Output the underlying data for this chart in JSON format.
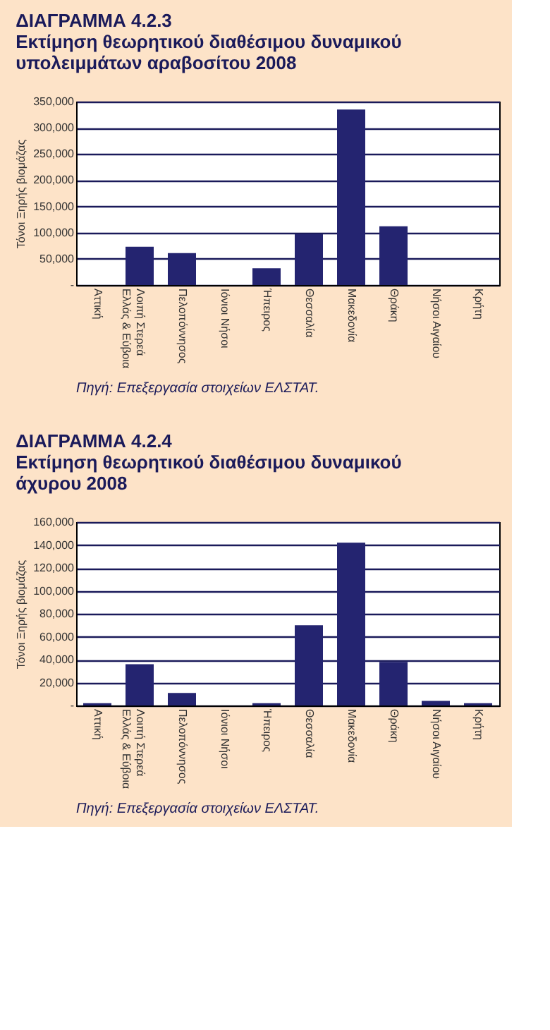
{
  "chart_data": [
    {
      "type": "bar",
      "title": "ΔΙΑΓΡΑΜΜΑ 4.2.3\nΕκτίμηση θεωρητικού διαθέσιμου δυναμικού\nυπολειμμάτων αραβοσίτου 2008",
      "ylabel": "Τόνοι Ξηρής βιομάζας",
      "categories": [
        "Αττική",
        "Λοιπή Στερεά\nΕλλάς & Εύβοια",
        "Πελοπόννησος",
        "Ιόνιοι Νήσοι",
        "Ήπειρος",
        "Θεσσαλία",
        "Μακεδονία",
        "Θράκη",
        "Νήσοι Αιγαίου",
        "Κρήτη"
      ],
      "values": [
        0,
        73000,
        61000,
        0,
        32000,
        97000,
        335000,
        112000,
        0,
        0
      ],
      "color": "#242470",
      "ylim": [
        0,
        350000
      ],
      "yticks": [
        {
          "value": 0,
          "label": "-"
        },
        {
          "value": 50000,
          "label": "50,000"
        },
        {
          "value": 100000,
          "label": "100,000"
        },
        {
          "value": 150000,
          "label": "150,000"
        },
        {
          "value": 200000,
          "label": "200,000"
        },
        {
          "value": 250000,
          "label": "250,000"
        },
        {
          "value": 300000,
          "label": "300,000"
        },
        {
          "value": 350000,
          "label": "350,000"
        }
      ],
      "grid": "y",
      "annotations": [
        "Πηγή: Επεξεργασία στοιχείων ΕΛΣΤΑΤ."
      ]
    },
    {
      "type": "bar",
      "title": "ΔΙΑΓΡΑΜΜΑ 4.2.4\nΕκτίμηση θεωρητικού διαθέσιμου δυναμικού\nάχυρου 2008",
      "ylabel": "Τόνοι Ξηρής βιομάζας",
      "categories": [
        "Αττική",
        "Λοιπή Στερεά\nΕλλάς & Εύβοια",
        "Πελοπόννησος",
        "Ιόνιοι Νήσοι",
        "Ήπειρος",
        "Θεσσαλία",
        "Μακεδονία",
        "Θράκη",
        "Νήσοι Αιγαίου",
        "Κρήτη"
      ],
      "values": [
        2000,
        36000,
        11000,
        0,
        2000,
        70000,
        142000,
        38000,
        4000,
        2000
      ],
      "color": "#242470",
      "ylim": [
        0,
        160000
      ],
      "yticks": [
        {
          "value": 0,
          "label": "-"
        },
        {
          "value": 20000,
          "label": "20,000"
        },
        {
          "value": 40000,
          "label": "40,000"
        },
        {
          "value": 60000,
          "label": "60,000"
        },
        {
          "value": 80000,
          "label": "80,000"
        },
        {
          "value": 100000,
          "label": "100,000"
        },
        {
          "value": 120000,
          "label": "120,000"
        },
        {
          "value": 140000,
          "label": "140,000"
        },
        {
          "value": 160000,
          "label": "160,000"
        }
      ],
      "grid": "y",
      "annotations": [
        "Πηγή: Επεξεργασία στοιχείων ΕΛΣΤΑΤ."
      ]
    }
  ]
}
